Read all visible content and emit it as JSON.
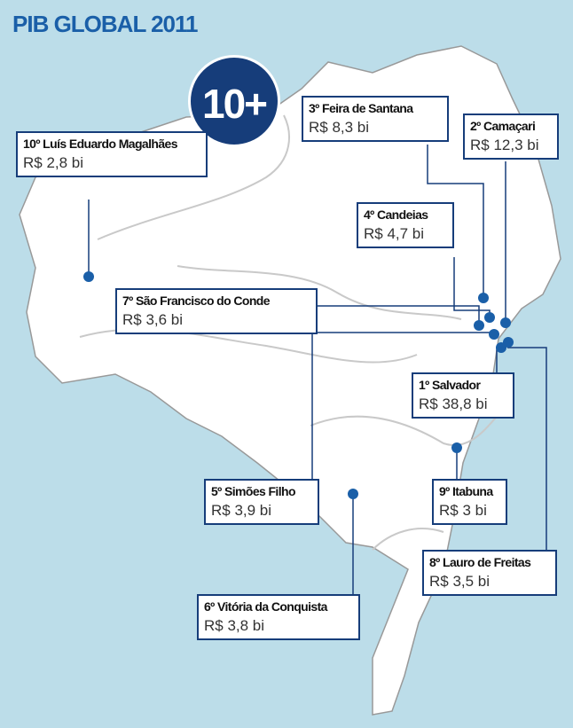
{
  "title": "PIB GLOBAL 2011",
  "badge": "10+",
  "items": [
    {
      "label": "10º Luís Eduardo Magalhães",
      "value": "R$ 2,8 bi"
    },
    {
      "label": "3º Feira de Santana",
      "value": "R$ 8,3 bi"
    },
    {
      "label": "2º Camaçari",
      "value": "R$ 12,3 bi"
    },
    {
      "label": "4º Candeias",
      "value": "R$ 4,7 bi"
    },
    {
      "label": "7º São Francisco do Conde",
      "value": "R$ 3,6 bi"
    },
    {
      "label": "1º Salvador",
      "value": "R$ 38,8 bi"
    },
    {
      "label": "5º Simões Filho",
      "value": "R$ 3,9 bi"
    },
    {
      "label": "9º Itabuna",
      "value": "R$ 3 bi"
    },
    {
      "label": "8º Lauro de Freitas",
      "value": "R$ 3,5 bi"
    },
    {
      "label": "6º Vitória da Conquista",
      "value": "R$ 3,8 bi"
    }
  ]
}
